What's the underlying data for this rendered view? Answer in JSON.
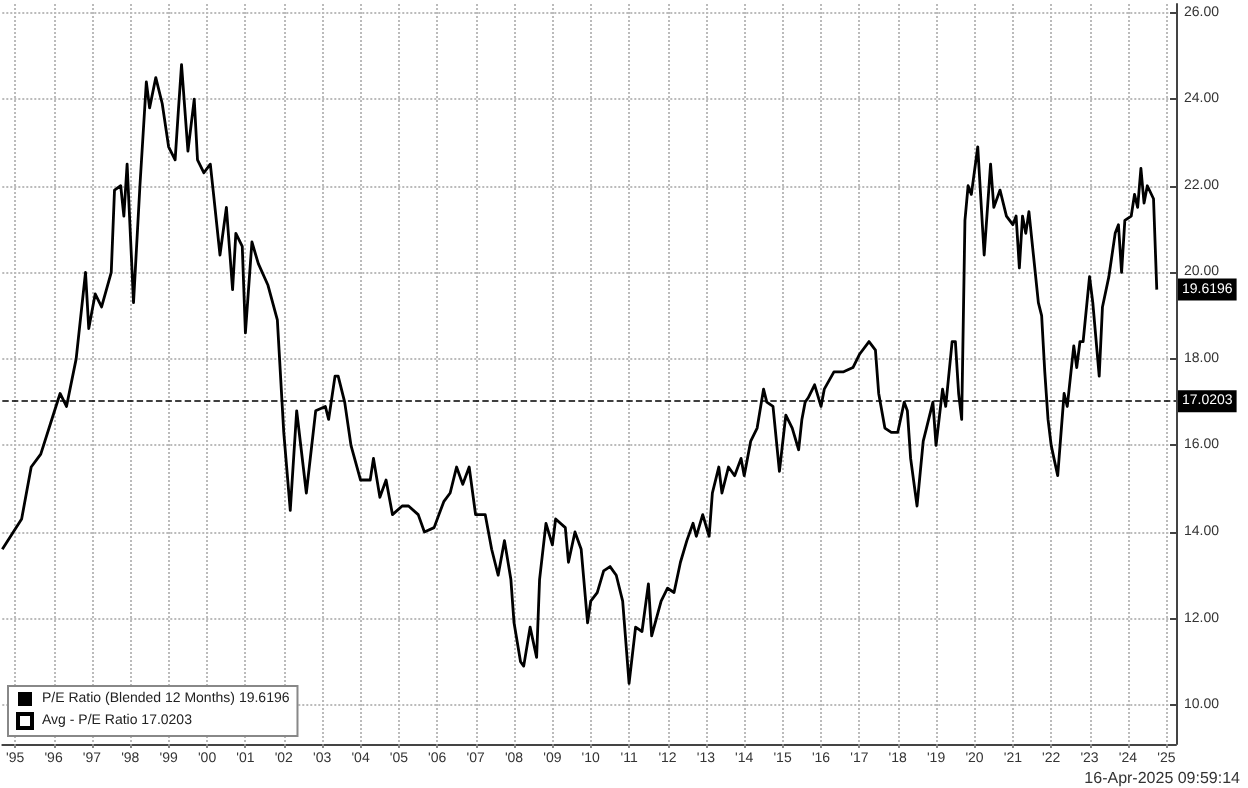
{
  "chart_data": {
    "type": "line",
    "x": [
      "1995-03",
      "1995-09",
      "1995-12",
      "1996-03",
      "1996-06",
      "1996-09",
      "1996-11",
      "1997-02",
      "1997-05",
      "1997-06",
      "1997-08",
      "1997-10",
      "1998-01",
      "1998-02",
      "1998-04",
      "1998-05",
      "1998-06",
      "1998-08",
      "1998-10",
      "1998-12",
      "1999-01",
      "1999-03",
      "1999-05",
      "1999-07",
      "1999-09",
      "1999-10",
      "1999-11",
      "2000-01",
      "2000-03",
      "2000-04",
      "2000-06",
      "2000-08",
      "2000-09",
      "2000-11",
      "2001-01",
      "2001-03",
      "2001-04",
      "2001-06",
      "2001-07",
      "2001-09",
      "2001-11",
      "2002-02",
      "2002-05",
      "2002-07",
      "2002-09",
      "2002-11",
      "2003-02",
      "2003-05",
      "2003-08",
      "2003-09",
      "2003-11",
      "2003-12",
      "2004-02",
      "2004-04",
      "2004-07",
      "2004-10",
      "2004-11",
      "2005-01",
      "2005-03",
      "2005-05",
      "2005-08",
      "2005-10",
      "2006-01",
      "2006-03",
      "2006-06",
      "2006-09",
      "2006-11",
      "2007-01",
      "2007-03",
      "2007-05",
      "2007-07",
      "2007-10",
      "2007-12",
      "2008-02",
      "2008-04",
      "2008-06",
      "2008-07",
      "2008-09",
      "2008-10",
      "2008-12",
      "2009-02",
      "2009-03",
      "2009-05",
      "2009-07",
      "2009-08",
      "2009-11",
      "2009-12",
      "2010-02",
      "2010-04",
      "2010-06",
      "2010-07",
      "2010-09",
      "2010-11",
      "2011-01",
      "2011-03",
      "2011-05",
      "2011-07",
      "2011-09",
      "2011-11",
      "2012-01",
      "2012-02",
      "2012-05",
      "2012-07",
      "2012-09",
      "2012-11",
      "2013-01",
      "2013-03",
      "2013-04",
      "2013-06",
      "2013-08",
      "2013-09",
      "2013-11",
      "2013-12",
      "2014-02",
      "2014-04",
      "2014-06",
      "2014-07",
      "2014-09",
      "2014-11",
      "2015-01",
      "2015-02",
      "2015-04",
      "2015-06",
      "2015-08",
      "2015-10",
      "2015-12",
      "2016-01",
      "2016-02",
      "2016-03",
      "2016-05",
      "2016-07",
      "2016-08",
      "2016-11",
      "2017-02",
      "2017-05",
      "2017-07",
      "2017-10",
      "2017-12",
      "2018-01",
      "2018-03",
      "2018-05",
      "2018-07",
      "2018-09",
      "2018-10",
      "2018-11",
      "2019-01",
      "2019-03",
      "2019-04",
      "2019-06",
      "2019-07",
      "2019-09",
      "2019-10",
      "2019-12",
      "2020-01",
      "2020-02",
      "2020-03",
      "2020-04",
      "2020-05",
      "2020-06",
      "2020-08",
      "2020-10",
      "2020-12",
      "2021-01",
      "2021-03",
      "2021-05",
      "2021-07",
      "2021-08",
      "2021-09",
      "2021-10",
      "2021-11",
      "2021-12",
      "2022-03",
      "2022-04",
      "2022-05",
      "2022-06",
      "2022-07",
      "2022-09",
      "2022-11",
      "2022-12",
      "2023-02",
      "2023-03",
      "2023-04",
      "2023-05",
      "2023-07",
      "2023-08",
      "2023-10",
      "2023-11",
      "2024-01",
      "2024-03",
      "2024-04",
      "2024-05",
      "2024-06",
      "2024-08",
      "2024-09",
      "2024-10",
      "2024-11",
      "2024-12",
      "2025-01",
      "2025-03",
      "2025-04"
    ],
    "series": [
      {
        "name": "P/E Ratio (Blended 12 Months) 19.6196",
        "color": "#000000",
        "values": [
          13.6,
          14.3,
          15.5,
          15.8,
          16.5,
          17.2,
          16.9,
          18.0,
          20.0,
          18.7,
          19.5,
          19.2,
          20.0,
          21.9,
          22.0,
          21.3,
          22.5,
          19.3,
          22.0,
          24.4,
          23.8,
          24.5,
          23.9,
          22.9,
          22.6,
          23.7,
          24.8,
          22.8,
          24.0,
          22.6,
          22.3,
          22.5,
          21.8,
          20.4,
          21.5,
          19.6,
          20.9,
          20.6,
          18.6,
          20.7,
          20.2,
          19.7,
          18.9,
          16.3,
          14.5,
          16.8,
          14.9,
          16.8,
          16.9,
          16.6,
          17.6,
          17.6,
          17.0,
          16.0,
          15.2,
          15.2,
          15.7,
          14.8,
          15.2,
          14.4,
          14.6,
          14.6,
          14.4,
          14.0,
          14.1,
          14.7,
          14.9,
          15.5,
          15.1,
          15.5,
          14.4,
          14.4,
          13.6,
          13.0,
          13.8,
          12.9,
          11.9,
          11.0,
          10.9,
          11.8,
          11.1,
          12.9,
          14.2,
          13.7,
          14.3,
          14.1,
          13.3,
          14.0,
          13.6,
          11.9,
          12.4,
          12.6,
          13.1,
          13.2,
          13.0,
          12.4,
          10.5,
          11.8,
          11.7,
          12.8,
          11.6,
          12.4,
          12.7,
          12.6,
          13.3,
          13.8,
          14.2,
          13.9,
          14.4,
          13.9,
          14.9,
          15.5,
          14.9,
          15.5,
          15.3,
          15.7,
          15.3,
          16.1,
          16.4,
          17.3,
          17.0,
          16.9,
          15.4,
          16.7,
          16.4,
          15.9,
          16.6,
          17.0,
          17.1,
          17.4,
          16.9,
          17.3,
          17.7,
          17.7,
          17.8,
          18.1,
          18.4,
          18.2,
          17.2,
          16.4,
          16.3,
          16.3,
          17.0,
          16.8,
          15.7,
          14.6,
          16.1,
          16.4,
          17.0,
          16.0,
          17.3,
          16.9,
          18.4,
          18.4,
          17.2,
          16.6,
          21.2,
          22.0,
          21.8,
          22.9,
          20.4,
          22.5,
          21.5,
          21.9,
          21.3,
          21.1,
          21.3,
          20.1,
          21.3,
          20.9,
          21.4,
          19.3,
          19.0,
          17.7,
          16.6,
          16.0,
          15.3,
          17.2,
          16.9,
          18.3,
          17.8,
          18.4,
          18.4,
          19.9,
          19.3,
          17.6,
          19.2,
          19.9,
          20.9,
          21.1,
          20.0,
          21.2,
          21.3,
          21.8,
          21.5,
          22.4,
          21.6,
          22.0,
          21.7,
          19.6
        ]
      }
    ],
    "xlim": [
      "1995-03",
      "2025-10"
    ],
    "xticks": [
      {
        "value": "1995-07",
        "label": "'95"
      },
      {
        "value": "1996-07",
        "label": "'96"
      },
      {
        "value": "1997-07",
        "label": "'97"
      },
      {
        "value": "1998-07",
        "label": "'98"
      },
      {
        "value": "1999-07",
        "label": "'99"
      },
      {
        "value": "2000-07",
        "label": "'00"
      },
      {
        "value": "2001-07",
        "label": "'01"
      },
      {
        "value": "2002-07",
        "label": "'02"
      },
      {
        "value": "2003-07",
        "label": "'03"
      },
      {
        "value": "2004-07",
        "label": "'04"
      },
      {
        "value": "2005-07",
        "label": "'05"
      },
      {
        "value": "2006-07",
        "label": "'06"
      },
      {
        "value": "2007-07",
        "label": "'07"
      },
      {
        "value": "2008-07",
        "label": "'08"
      },
      {
        "value": "2009-07",
        "label": "'09"
      },
      {
        "value": "2010-07",
        "label": "'10"
      },
      {
        "value": "2011-07",
        "label": "'11"
      },
      {
        "value": "2012-07",
        "label": "'12"
      },
      {
        "value": "2013-07",
        "label": "'13"
      },
      {
        "value": "2014-07",
        "label": "'14"
      },
      {
        "value": "2015-07",
        "label": "'15"
      },
      {
        "value": "2016-07",
        "label": "'16"
      },
      {
        "value": "2017-07",
        "label": "'17"
      },
      {
        "value": "2018-07",
        "label": "'18"
      },
      {
        "value": "2019-07",
        "label": "'19"
      },
      {
        "value": "2020-07",
        "label": "'20"
      },
      {
        "value": "2021-07",
        "label": "'21"
      },
      {
        "value": "2022-07",
        "label": "'22"
      },
      {
        "value": "2023-07",
        "label": "'23"
      },
      {
        "value": "2024-07",
        "label": "'24"
      },
      {
        "value": "2025-07",
        "label": "'25"
      }
    ],
    "ylim": [
      9.1,
      26.2
    ],
    "yticks": [
      {
        "value": 10,
        "label": "10.00"
      },
      {
        "value": 12,
        "label": "12.00"
      },
      {
        "value": 14,
        "label": "14.00"
      },
      {
        "value": 16,
        "label": "16.00"
      },
      {
        "value": 18,
        "label": "18.00"
      },
      {
        "value": 20,
        "label": "20.00"
      },
      {
        "value": 22,
        "label": "22.00"
      },
      {
        "value": 24,
        "label": "24.00"
      },
      {
        "value": 26,
        "label": "26.00"
      }
    ],
    "ref_lines": [
      {
        "axis": "y",
        "value": 17.02,
        "label": "Avg - P/E Ratio 17.0203",
        "color": "#000000",
        "line_style": "dashed"
      }
    ],
    "annotations": [
      {
        "text": "19.6196",
        "x": "2025-04",
        "y": 19.6
      },
      {
        "text": "17.0203",
        "x": "2025-04",
        "y": 17.02
      },
      "16-Apr-2025 09:59:14"
    ],
    "grid": true,
    "legend": "bottom left",
    "marker": "none",
    "line_style": "solid"
  }
}
